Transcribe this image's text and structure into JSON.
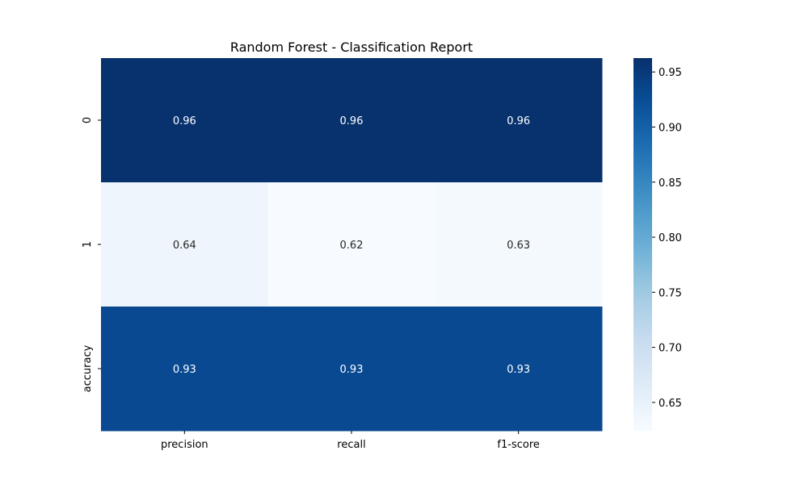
{
  "chart_data": {
    "type": "heatmap",
    "title": "Random Forest - Classification Report",
    "xlabel": "",
    "ylabel": "",
    "x_categories": [
      "precision",
      "recall",
      "f1-score"
    ],
    "y_categories": [
      "0",
      "1",
      "accuracy"
    ],
    "values": [
      [
        0.96,
        0.96,
        0.96
      ],
      [
        0.64,
        0.62,
        0.63
      ],
      [
        0.93,
        0.93,
        0.93
      ]
    ],
    "value_labels": [
      [
        "0.96",
        "0.96",
        "0.96"
      ],
      [
        "0.64",
        "0.62",
        "0.63"
      ],
      [
        "0.93",
        "0.93",
        "0.93"
      ]
    ],
    "colormap": "Blues",
    "colorbar": {
      "range": [
        0.6243,
        0.9626
      ],
      "ticks": [
        0.65,
        0.7,
        0.75,
        0.8,
        0.85,
        0.9,
        0.95
      ],
      "tick_labels": [
        "0.65",
        "0.70",
        "0.75",
        "0.80",
        "0.85",
        "0.90",
        "0.95"
      ]
    },
    "grid": false,
    "legend": "colorbar-right"
  }
}
